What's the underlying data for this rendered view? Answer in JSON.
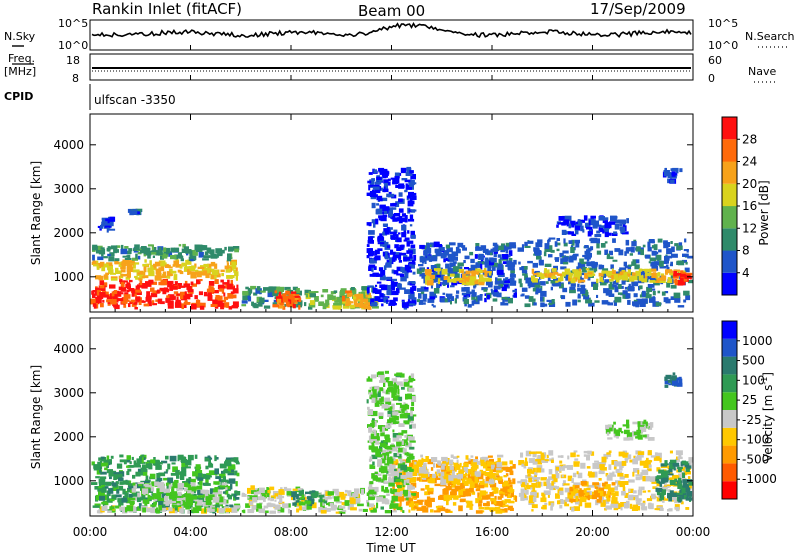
{
  "header": {
    "station": "Rankin Inlet (fitACF)",
    "beam": "Beam 00",
    "date": "17/Sep/2009"
  },
  "top_panels": {
    "nsky_label": "N.Sky",
    "nsearch_label": "N.Search",
    "nsky_ticks": [
      "10^5",
      "10^0"
    ],
    "nsearch_ticks": [
      "10^5",
      "10^0"
    ],
    "freq_label": "Freq.",
    "freq_unit": "[MHz]",
    "freq_ticks": [
      "18",
      "8"
    ],
    "nave_label": "Nave",
    "nave_ticks": [
      "60",
      "0"
    ],
    "cpid_label": "CPID",
    "cpid_value": "ulfscan -3350"
  },
  "colors": {
    "power_scale": [
      "#0000ff",
      "#1f55c9",
      "#2f8a6a",
      "#60b24d",
      "#d9d31e",
      "#f7a21a",
      "#ff6a0a",
      "#ff1010"
    ],
    "velocity_scale": [
      "#ff0000",
      "#ff5a00",
      "#ff9a00",
      "#ffc800",
      "#c8c8c8",
      "#44c61e",
      "#2f9a54",
      "#2a7a6e",
      "#1f55c9",
      "#0000ff"
    ]
  },
  "chart_data": [
    {
      "type": "heatmap",
      "name": "power",
      "ylabel": "Slant Range [km]",
      "yticks": [
        "1000",
        "2000",
        "3000",
        "4000"
      ],
      "ylim": [
        200,
        4700
      ],
      "xlim_hours": [
        0,
        24
      ],
      "colorbar_label": "Power [dB]",
      "colorbar_ticks": [
        "4",
        "8",
        "12",
        "16",
        "20",
        "24",
        "28"
      ],
      "colorbar_range": [
        0,
        32
      ],
      "bands": [
        {
          "t0": 0.0,
          "t1": 6.0,
          "r0": 250,
          "r1": 950,
          "v": 29
        },
        {
          "t0": 0.0,
          "t1": 6.0,
          "r0": 900,
          "r1": 1400,
          "v": 20
        },
        {
          "t0": 0.0,
          "t1": 6.0,
          "r0": 1350,
          "r1": 1750,
          "v": 10
        },
        {
          "t0": 0.3,
          "t1": 1.0,
          "r0": 2000,
          "r1": 2400,
          "v": 5
        },
        {
          "t0": 1.5,
          "t1": 2.1,
          "r0": 2400,
          "r1": 2550,
          "v": 6
        },
        {
          "t0": 6.0,
          "t1": 8.5,
          "r0": 250,
          "r1": 800,
          "v": 10
        },
        {
          "t0": 7.2,
          "t1": 8.5,
          "r0": 250,
          "r1": 700,
          "v": 26
        },
        {
          "t0": 8.5,
          "t1": 11.5,
          "r0": 250,
          "r1": 800,
          "v": 14
        },
        {
          "t0": 10.0,
          "t1": 11.5,
          "r0": 250,
          "r1": 700,
          "v": 22
        },
        {
          "t0": 11.0,
          "t1": 13.0,
          "r0": 250,
          "r1": 3500,
          "v": 3
        },
        {
          "t0": 13.0,
          "t1": 17.0,
          "r0": 300,
          "r1": 1800,
          "v": 6
        },
        {
          "t0": 13.2,
          "t1": 16.0,
          "r0": 800,
          "r1": 1200,
          "v": 20
        },
        {
          "t0": 17.0,
          "t1": 24.0,
          "r0": 300,
          "r1": 1900,
          "v": 7
        },
        {
          "t0": 17.5,
          "t1": 23.8,
          "r0": 850,
          "r1": 1200,
          "v": 19
        },
        {
          "t0": 23.2,
          "t1": 24.0,
          "r0": 800,
          "r1": 1150,
          "v": 28
        },
        {
          "t0": 18.5,
          "t1": 21.5,
          "r0": 1900,
          "r1": 2400,
          "v": 4
        },
        {
          "t0": 22.8,
          "t1": 23.6,
          "r0": 3100,
          "r1": 3500,
          "v": 5
        }
      ]
    },
    {
      "type": "heatmap",
      "name": "velocity",
      "ylabel": "Slant Range [km]",
      "yticks": [
        "1000",
        "2000",
        "3000",
        "4000"
      ],
      "ylim": [
        200,
        4700
      ],
      "xlim_hours": [
        0,
        24
      ],
      "colorbar_label": "Velocity [m s^-1]",
      "colorbar_ticks": [
        "1000",
        "500",
        "100",
        "25",
        "-25",
        "-100",
        "-500",
        "-1000"
      ],
      "colorbar_range": [
        -1000,
        1000
      ],
      "bands": [
        {
          "t0": 0.0,
          "t1": 6.0,
          "r0": 250,
          "r1": 1600,
          "v": 300
        },
        {
          "t0": 1.5,
          "t1": 5.5,
          "r0": 400,
          "r1": 1000,
          "v": 0
        },
        {
          "t0": 0.2,
          "t1": 6.0,
          "r0": 250,
          "r1": 450,
          "v": -90
        },
        {
          "t0": 6.0,
          "t1": 11.5,
          "r0": 250,
          "r1": 900,
          "v": -70
        },
        {
          "t0": 8.0,
          "t1": 9.5,
          "r0": 400,
          "r1": 800,
          "v": 300
        },
        {
          "t0": 12.0,
          "t1": 17.0,
          "r0": 250,
          "r1": 1500,
          "v": -400
        },
        {
          "t0": 13.0,
          "t1": 16.5,
          "r0": 900,
          "r1": 1600,
          "v": -250
        },
        {
          "t0": 17.0,
          "t1": 24.0,
          "r0": 300,
          "r1": 1700,
          "v": -200
        },
        {
          "t0": 19.0,
          "t1": 21.0,
          "r0": 500,
          "r1": 1000,
          "v": -400
        },
        {
          "t0": 22.5,
          "t1": 24.0,
          "r0": 500,
          "r1": 1500,
          "v": 400
        },
        {
          "t0": 11.0,
          "t1": 13.0,
          "r0": 250,
          "r1": 3500,
          "v": 50
        },
        {
          "t0": 20.5,
          "t1": 22.5,
          "r0": 1900,
          "r1": 2400,
          "v": -20
        },
        {
          "t0": 22.8,
          "t1": 23.6,
          "r0": 3100,
          "r1": 3500,
          "v": 600
        }
      ]
    }
  ],
  "x_axis": {
    "label": "Time UT",
    "ticks": [
      "00:00",
      "04:00",
      "08:00",
      "12:00",
      "16:00",
      "20:00",
      "00:00"
    ]
  }
}
